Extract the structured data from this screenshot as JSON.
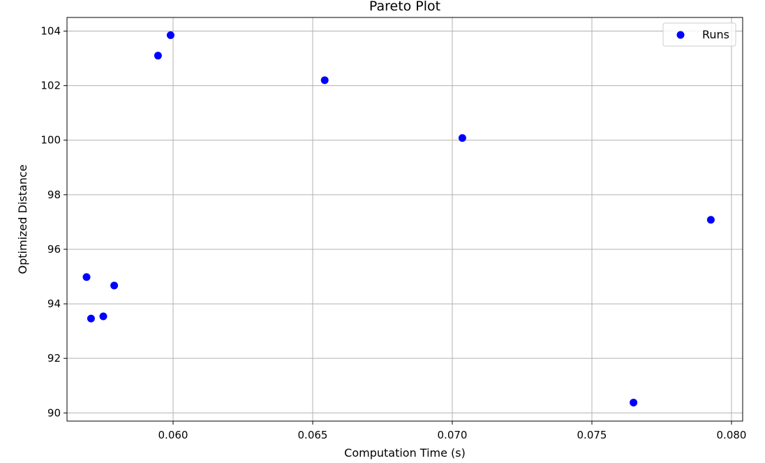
{
  "chart_data": {
    "type": "scatter",
    "title": "Pareto Plot",
    "xlabel": "Computation Time (s)",
    "ylabel": "Optimized Distance",
    "xlim": [
      0.0562,
      0.0804
    ],
    "ylim": [
      89.7,
      104.5
    ],
    "xticks": [
      0.06,
      0.065,
      0.07,
      0.075,
      0.08
    ],
    "xtick_labels": [
      "0.060",
      "0.065",
      "0.070",
      "0.075",
      "0.080"
    ],
    "yticks": [
      90,
      92,
      94,
      96,
      98,
      100,
      102,
      104
    ],
    "ytick_labels": [
      "90",
      "92",
      "94",
      "96",
      "98",
      "100",
      "102",
      "104"
    ],
    "grid": true,
    "legend_position": "top-right",
    "series": [
      {
        "name": "Runs",
        "color": "#0000ff",
        "points": [
          {
            "x": 0.05991,
            "y": 103.85
          },
          {
            "x": 0.05946,
            "y": 103.1
          },
          {
            "x": 0.06543,
            "y": 102.2
          },
          {
            "x": 0.07036,
            "y": 100.08
          },
          {
            "x": 0.07926,
            "y": 97.08
          },
          {
            "x": 0.0569,
            "y": 94.98
          },
          {
            "x": 0.05789,
            "y": 94.67
          },
          {
            "x": 0.05706,
            "y": 93.46
          },
          {
            "x": 0.0575,
            "y": 93.54
          },
          {
            "x": 0.07649,
            "y": 90.38
          }
        ]
      }
    ]
  }
}
